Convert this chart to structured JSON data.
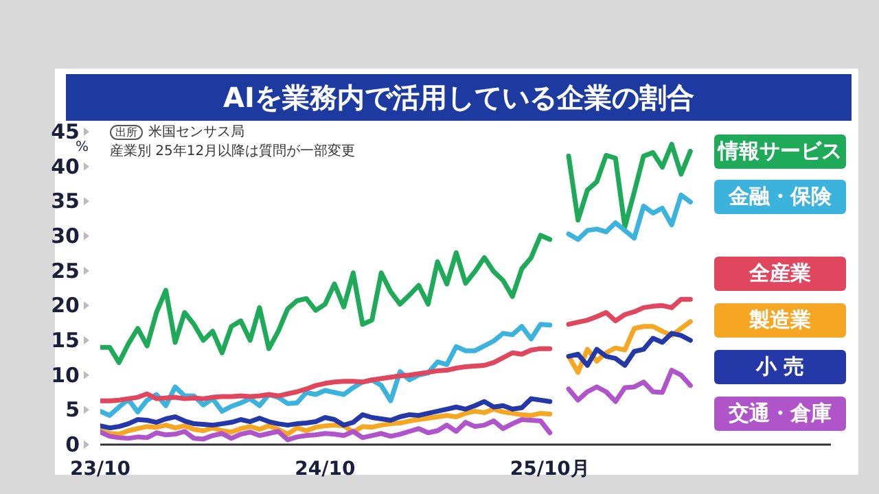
{
  "chart_data": {
    "type": "line",
    "title": "AIを業務内で活用している企業の割合",
    "ylabel": "%",
    "annotations": [
      "出所",
      "米国センサス局",
      "産業別 25年12月以降は質問が一部変更"
    ],
    "categories": [
      "23/10",
      null,
      null,
      null,
      null,
      null,
      null,
      null,
      null,
      null,
      null,
      null,
      null,
      null,
      null,
      null,
      null,
      null,
      null,
      null,
      null,
      null,
      null,
      null,
      "24/10",
      null,
      null,
      null,
      null,
      null,
      null,
      null,
      null,
      null,
      null,
      null,
      null,
      null,
      null,
      null,
      null,
      null,
      null,
      null,
      null,
      null,
      null,
      null,
      "25/10月",
      null,
      null,
      null,
      null,
      null,
      null,
      null,
      null,
      null,
      null,
      null,
      null,
      null,
      null,
      null,
      null,
      null,
      null,
      null,
      null,
      null,
      null,
      null,
      null,
      null,
      null,
      null,
      null,
      null,
      null
    ],
    "series": [
      {
        "name": "情報サービス",
        "color": "#1faa5a",
        "values": [
          14.0,
          14.0,
          11.8,
          14.5,
          16.7,
          14.2,
          19.0,
          22.2,
          14.7,
          19.0,
          17.3,
          15.0,
          16.3,
          13.2,
          17.0,
          17.8,
          15.0,
          19.7,
          13.8,
          16.3,
          19.5,
          20.7,
          21.0,
          19.3,
          20.2,
          23.1,
          19.8,
          24.7,
          17.3,
          17.9,
          24.7,
          22.0,
          20.2,
          21.5,
          22.9,
          20.2,
          26.3,
          23.1,
          27.6,
          23.2,
          24.9,
          26.9,
          24.9,
          23.6,
          21.3,
          25.3,
          26.9,
          30.1,
          29.5,
          null,
          41.5,
          32.3,
          36.6,
          37.8,
          41.6,
          41.2,
          31.3,
          36.3,
          41.5,
          42.0,
          39.9,
          43.2,
          38.9,
          42.2,
          null,
          null,
          null,
          null,
          null,
          null,
          null,
          null,
          null,
          null,
          null,
          null,
          null,
          null,
          null
        ]
      },
      {
        "name": "金融・保険",
        "color": "#3bb3dc",
        "values": [
          4.8,
          4.2,
          5.4,
          6.5,
          4.7,
          6.4,
          7.2,
          5.6,
          8.3,
          7.0,
          7.0,
          5.7,
          6.6,
          4.8,
          5.5,
          6.0,
          6.6,
          5.6,
          7.2,
          6.8,
          5.9,
          6.0,
          7.5,
          7.2,
          7.8,
          7.5,
          7.2,
          8.2,
          9.0,
          9.3,
          8.5,
          6.3,
          10.5,
          9.3,
          10.0,
          10.3,
          11.9,
          11.5,
          14.1,
          13.5,
          13.5,
          14.2,
          14.9,
          16.0,
          15.8,
          17.0,
          15.2,
          17.3,
          17.2,
          null,
          30.3,
          29.5,
          30.8,
          31.0,
          30.6,
          31.9,
          30.8,
          29.7,
          34.3,
          33.3,
          34.0,
          31.6,
          35.9,
          34.9,
          null,
          null,
          null,
          null,
          null,
          null,
          null,
          null,
          null,
          null,
          null,
          null,
          null,
          null,
          null
        ]
      },
      {
        "name": "全産業",
        "color": "#e0475f",
        "values": [
          6.3,
          6.3,
          6.4,
          6.6,
          6.8,
          7.3,
          6.6,
          6.7,
          6.8,
          6.6,
          6.7,
          6.6,
          6.8,
          6.9,
          6.9,
          7.0,
          6.9,
          7.0,
          7.2,
          7.0,
          7.3,
          7.6,
          8.0,
          8.5,
          8.8,
          9.0,
          9.1,
          9.1,
          9.0,
          9.3,
          9.5,
          9.7,
          9.9,
          10.0,
          10.2,
          10.4,
          10.6,
          10.7,
          11.0,
          11.2,
          11.3,
          11.4,
          11.8,
          12.5,
          13.2,
          13.0,
          13.6,
          13.8,
          13.8,
          null,
          17.3,
          17.6,
          17.9,
          18.4,
          19.0,
          17.8,
          18.7,
          19.1,
          19.7,
          19.9,
          20.0,
          19.7,
          20.9,
          20.9,
          null,
          null,
          null,
          null,
          null,
          null,
          null,
          null,
          null,
          null,
          null,
          null,
          null,
          null,
          null
        ]
      },
      {
        "name": "製造業",
        "color": "#f5a623",
        "values": [
          2.0,
          1.6,
          1.5,
          2.0,
          2.3,
          2.6,
          2.5,
          2.8,
          2.4,
          2.7,
          2.2,
          2.0,
          2.4,
          2.0,
          1.8,
          2.3,
          2.6,
          2.2,
          2.7,
          2.2,
          1.5,
          2.4,
          2.0,
          2.5,
          2.7,
          2.8,
          2.7,
          1.8,
          2.6,
          2.5,
          2.8,
          3.0,
          3.1,
          3.4,
          3.6,
          3.8,
          4.0,
          4.2,
          4.0,
          4.5,
          4.8,
          4.6,
          5.1,
          4.7,
          4.5,
          4.3,
          4.2,
          4.5,
          4.4,
          null,
          12.7,
          10.4,
          13.7,
          12.0,
          13.2,
          13.9,
          13.6,
          16.7,
          17.0,
          17.0,
          16.3,
          15.7,
          16.7,
          17.7,
          null,
          null,
          null,
          null,
          null,
          null,
          null,
          null,
          null,
          null,
          null,
          null,
          null,
          null,
          null
        ]
      },
      {
        "name": "小 売",
        "color": "#2438a8",
        "values": [
          2.7,
          2.4,
          2.6,
          3.0,
          3.6,
          3.5,
          3.2,
          3.7,
          4.0,
          3.4,
          3.0,
          2.9,
          2.8,
          3.0,
          3.2,
          3.6,
          3.3,
          3.8,
          3.3,
          3.0,
          2.8,
          3.0,
          3.1,
          3.3,
          3.9,
          3.6,
          2.8,
          3.2,
          4.3,
          3.9,
          3.7,
          3.5,
          4.0,
          4.3,
          4.2,
          4.5,
          4.8,
          5.1,
          5.4,
          5.1,
          5.6,
          6.2,
          5.4,
          5.6,
          5.1,
          5.3,
          6.6,
          6.4,
          6.2,
          null,
          12.7,
          13.0,
          11.4,
          13.7,
          12.7,
          12.4,
          11.4,
          13.4,
          13.7,
          15.3,
          14.7,
          16.0,
          15.7,
          15.0,
          null,
          null,
          null,
          null,
          null,
          null,
          null,
          null,
          null,
          null,
          null,
          null,
          null,
          null,
          null
        ]
      },
      {
        "name": "交通・倉庫",
        "color": "#b055c9",
        "values": [
          1.8,
          1.2,
          1.0,
          0.9,
          1.1,
          1.0,
          1.7,
          1.4,
          1.5,
          1.9,
          0.9,
          0.8,
          1.3,
          1.6,
          0.9,
          1.5,
          1.8,
          1.3,
          1.6,
          1.9,
          0.7,
          1.1,
          1.3,
          1.4,
          1.6,
          1.5,
          1.3,
          1.9,
          1.0,
          1.3,
          1.6,
          1.2,
          1.5,
          1.9,
          2.3,
          1.7,
          2.0,
          2.8,
          1.9,
          3.2,
          2.6,
          2.8,
          3.4,
          2.3,
          3.0,
          3.6,
          3.5,
          3.4,
          1.7,
          null,
          8.0,
          6.4,
          7.6,
          8.3,
          7.6,
          6.2,
          8.2,
          8.3,
          9.0,
          7.6,
          7.5,
          10.7,
          10.0,
          8.5,
          null,
          null,
          null,
          null,
          null,
          null,
          null,
          null,
          null,
          null,
          null,
          null,
          null,
          null,
          null
        ]
      }
    ],
    "ylim": [
      0,
      45
    ],
    "yticks": [
      0,
      5,
      10,
      15,
      20,
      25,
      30,
      35,
      40,
      45
    ],
    "grid": false,
    "legend": "right",
    "marker": "none",
    "line_style": "solid"
  }
}
